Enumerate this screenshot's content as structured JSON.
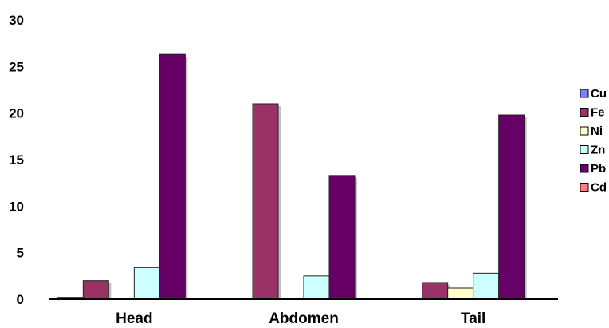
{
  "chart_data": {
    "type": "bar",
    "categories": [
      "Head",
      "Abdomen",
      "Tail"
    ],
    "series": [
      {
        "name": "Cu",
        "color": "#8080ff",
        "values": [
          0.2,
          0,
          0
        ]
      },
      {
        "name": "Fe",
        "color": "#993366",
        "values": [
          2.0,
          21.0,
          1.8
        ]
      },
      {
        "name": "Ni",
        "color": "#ffffcc",
        "values": [
          0,
          0,
          1.2
        ]
      },
      {
        "name": "Zn",
        "color": "#ccffff",
        "values": [
          3.4,
          2.5,
          2.8
        ]
      },
      {
        "name": "Pb",
        "color": "#660066",
        "values": [
          26.3,
          13.3,
          19.8
        ]
      },
      {
        "name": "Cd",
        "color": "#ff8080",
        "values": [
          0,
          0,
          0
        ]
      }
    ],
    "ylim": [
      0,
      30
    ],
    "yticks": [
      0,
      5,
      10,
      15,
      20,
      25,
      30
    ],
    "legend_position": "right",
    "grid": false
  }
}
